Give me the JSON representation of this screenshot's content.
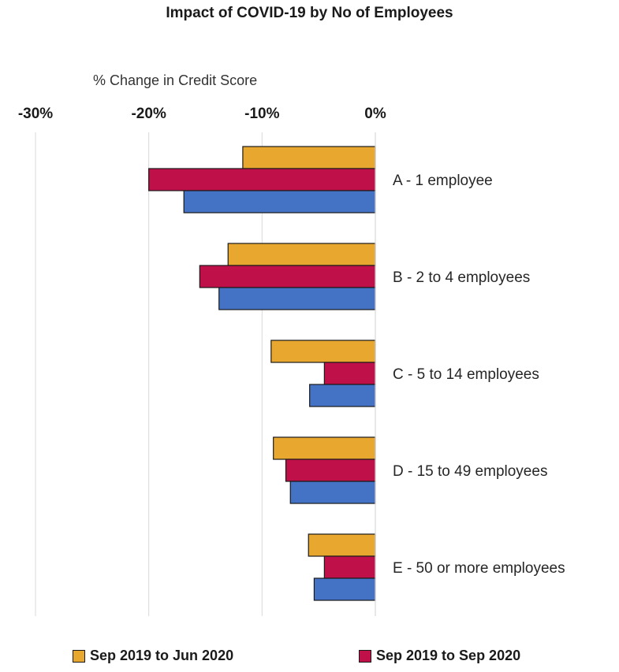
{
  "chart_data": {
    "type": "bar",
    "orientation": "horizontal",
    "title": "Impact of COVID-19 by No of Employees",
    "xlabel": "% Change in Credit Score",
    "xlim": [
      -30,
      0
    ],
    "xticks": [
      "-30%",
      "-20%",
      "-10%",
      "0%"
    ],
    "xtick_values": [
      -30,
      -20,
      -10,
      0
    ],
    "grid": "vertical",
    "categories": [
      "A - 1 employee",
      "B - 2 to 4 employees",
      "C - 5 to 14 employees",
      "D - 15 to 49 employees",
      "E - 50 or more employees"
    ],
    "series": [
      {
        "name": "Sep 2019 to Jun 2020",
        "color": "#E8A830",
        "values": [
          -11.7,
          -13.0,
          -9.2,
          -9.0,
          -5.9
        ]
      },
      {
        "name": "Sep 2019 to Sep 2020",
        "color": "#C0104A",
        "values": [
          -20.0,
          -15.5,
          -4.5,
          -7.9,
          -4.5
        ]
      },
      {
        "name": "",
        "color": "#4472C4",
        "values": [
          -16.9,
          -13.8,
          -5.8,
          -7.5,
          -5.4
        ]
      }
    ],
    "legend_position": "bottom"
  }
}
